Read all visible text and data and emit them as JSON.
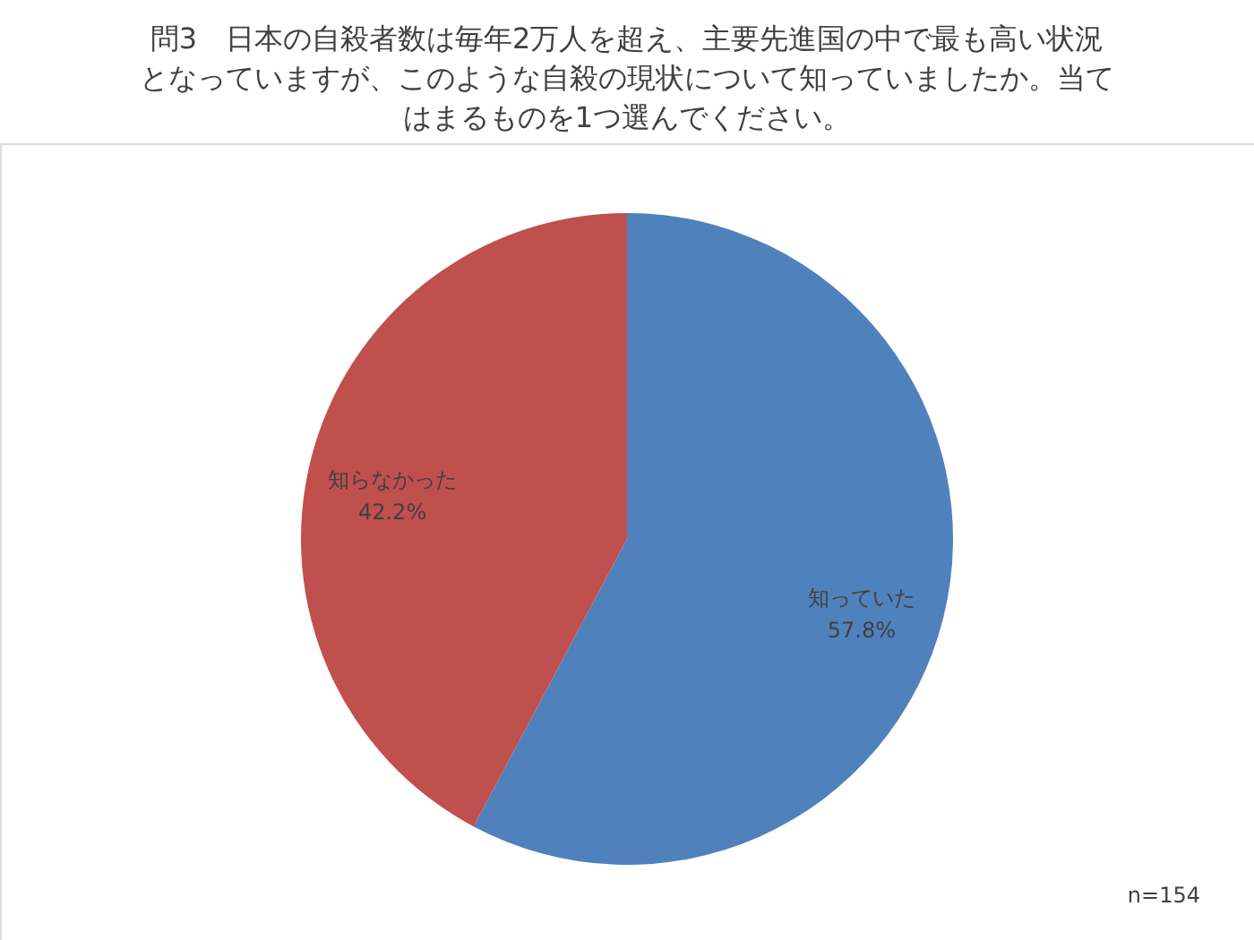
{
  "chart_data": {
    "type": "pie",
    "title": "問3　日本の自殺者数は毎年2万人を超え、主要先進国の中で最も高い状況となっていますが、このような自殺の現状について知っていましたか。当てはまるものを1つ選んでください。",
    "categories": [
      "知っていた",
      "知らなかった"
    ],
    "values": [
      57.8,
      42.2
    ],
    "colors": [
      "#4f81bd",
      "#c0504d"
    ],
    "value_labels": [
      "57.8%",
      "42.2%"
    ],
    "legend": false,
    "annotations": [
      "n=154"
    ]
  }
}
